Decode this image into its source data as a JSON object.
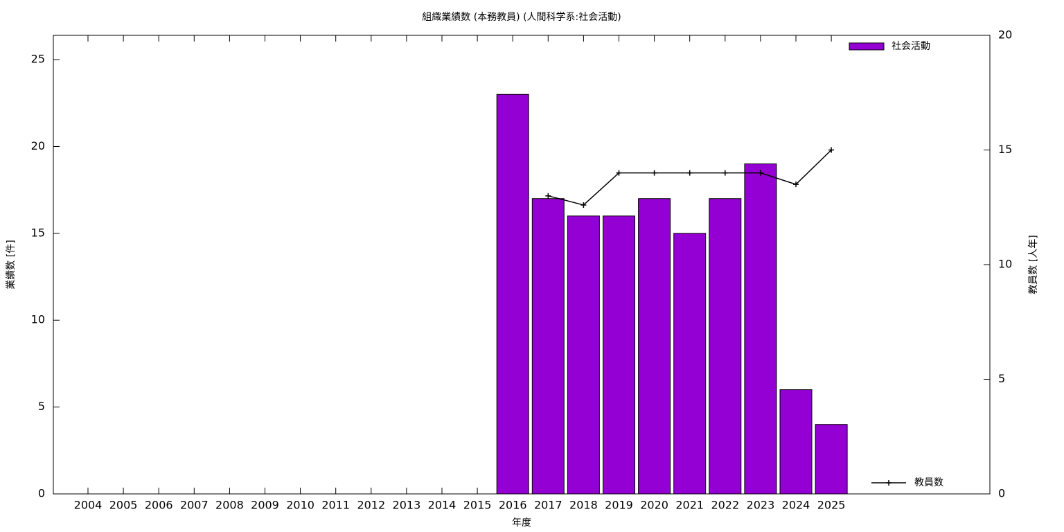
{
  "chart_data": {
    "type": "bar",
    "title": "組織業績数 (本務教員) (人間科学系:社会活動)",
    "x_label": "年度",
    "y_label": "業績数 [件]",
    "y2_label": "教員数 [人年]",
    "categories": [
      "2004",
      "2005",
      "2006",
      "2007",
      "2008",
      "2009",
      "2010",
      "2011",
      "2012",
      "2013",
      "2014",
      "2015",
      "2016",
      "2017",
      "2018",
      "2019",
      "2020",
      "2021",
      "2022",
      "2023",
      "2024",
      "2025"
    ],
    "series": [
      {
        "name": "社会活動",
        "type": "bar",
        "color": "#9400d3",
        "values": [
          null,
          null,
          null,
          null,
          null,
          null,
          null,
          null,
          null,
          null,
          null,
          null,
          23,
          17,
          16,
          16,
          17,
          15,
          17,
          19,
          6,
          4
        ]
      },
      {
        "name": "教員数",
        "type": "line",
        "axis": "y2",
        "color": "#000000",
        "values": [
          null,
          null,
          null,
          null,
          null,
          null,
          null,
          null,
          null,
          null,
          null,
          null,
          null,
          13,
          12.6,
          14,
          14,
          14,
          14,
          14,
          13.5,
          15
        ]
      }
    ],
    "ylim": [
      0,
      26.4
    ],
    "yticks": [
      0,
      5,
      10,
      15,
      20,
      25
    ],
    "y2lim": [
      0,
      20
    ],
    "y2ticks": [
      0,
      5,
      10,
      15,
      20
    ],
    "grid": false
  }
}
